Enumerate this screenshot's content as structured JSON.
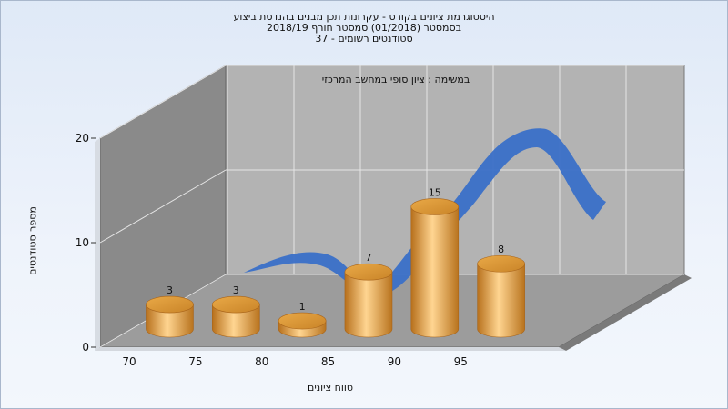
{
  "chart_data": {
    "type": "bar",
    "title_lines": [
      "היסטוגרמת ציונים בקורס - עקרונות תכן מבנים בהנדסת ביצוע",
      "בסמסטר  (01/2018)  סמסטר חורף  2018/19",
      "סטודנטים רשומים - 37"
    ],
    "subtitle": "במשימה : ציון סופי במחשב המרכזי",
    "xlabel": "טווח ציונים",
    "ylabel": "מספר סטודנטים",
    "x_ticks": [
      "70",
      "75",
      "80",
      "85",
      "90",
      "95"
    ],
    "y_ticks": [
      "0",
      "10",
      "20"
    ],
    "ylim": [
      0,
      20
    ],
    "bins": [
      {
        "from": 70,
        "to": 75,
        "value": 3
      },
      {
        "from": 75,
        "to": 80,
        "value": 3
      },
      {
        "from": 80,
        "to": 85,
        "value": 1
      },
      {
        "from": 85,
        "to": 90,
        "value": 7
      },
      {
        "from": 90,
        "to": 95,
        "value": 15
      },
      {
        "from": 95,
        "to": 100,
        "value": 8
      }
    ],
    "has_trend_curve": true,
    "grid": true,
    "colors": {
      "bar": "#e5a441",
      "curve": "#3a70c8",
      "back_wall": "#b3b3b3",
      "side_wall": "#8a8a8a",
      "floor": "#9c9c9c"
    }
  }
}
